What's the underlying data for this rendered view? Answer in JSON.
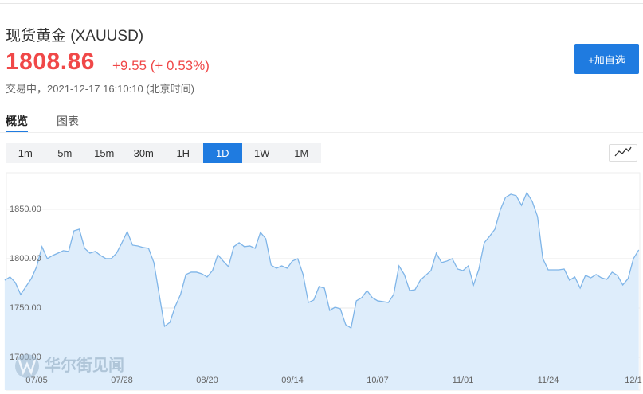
{
  "header": {
    "title": "现货黄金 (XAUUSD)",
    "price": "1808.86",
    "change": "+9.55 (+ 0.53%)",
    "status": "交易中，2021-12-17 16:10:10 (北京时间)",
    "add_button": "+加自选"
  },
  "tabs": [
    "概览",
    "图表"
  ],
  "periods": [
    "1m",
    "5m",
    "15m",
    "30m",
    "1H",
    "1D",
    "1W",
    "1M"
  ],
  "active_period": "1D",
  "watermark": "华尔街见闻",
  "chart_data": {
    "type": "area",
    "color": "#7fb5e8",
    "fill": "#deedfb",
    "grid": true,
    "categories": [
      null,
      null,
      null,
      null,
      null,
      null,
      "07/05",
      null,
      null,
      null,
      null,
      null,
      null,
      null,
      null,
      null,
      null,
      null,
      null,
      null,
      null,
      null,
      "07/28",
      null,
      null,
      null,
      null,
      null,
      null,
      null,
      null,
      null,
      null,
      null,
      null,
      null,
      null,
      null,
      "08/20",
      null,
      null,
      null,
      null,
      null,
      null,
      null,
      null,
      null,
      null,
      null,
      null,
      null,
      null,
      null,
      "09/14",
      null,
      null,
      null,
      null,
      null,
      null,
      null,
      null,
      null,
      null,
      null,
      null,
      null,
      null,
      null,
      "10/07",
      null,
      null,
      null,
      null,
      null,
      null,
      null,
      null,
      null,
      null,
      null,
      null,
      null,
      null,
      null,
      "11/01",
      null,
      null,
      null,
      null,
      null,
      null,
      null,
      null,
      null,
      null,
      null,
      null,
      null,
      null,
      null,
      "11/24",
      null,
      null,
      null,
      null,
      null,
      null,
      null,
      null,
      null,
      null,
      null,
      null,
      null,
      null,
      null,
      "12/1",
      null
    ],
    "values": [
      1778.2,
      1781.5,
      1775.8,
      1763.7,
      1771.8,
      1779.8,
      1791.9,
      1812.1,
      1800,
      1803.2,
      1805.6,
      1808.1,
      1807.3,
      1828.2,
      1829.8,
      1810.5,
      1805.6,
      1807.3,
      1803.2,
      1800,
      1800,
      1805.6,
      1816.1,
      1827.4,
      1813.7,
      1812.9,
      1811.3,
      1810.5,
      1796,
      1763.7,
      1731.5,
      1735.5,
      1751.6,
      1763.7,
      1783.9,
      1786.3,
      1786.3,
      1784.7,
      1781.5,
      1787.9,
      1804,
      1797.6,
      1791.9,
      1812.1,
      1816.1,
      1812.1,
      1812.9,
      1810.5,
      1826.6,
      1820.2,
      1793.5,
      1790.3,
      1792.7,
      1790.3,
      1797.6,
      1800,
      1783.9,
      1755.6,
      1758.1,
      1771.8,
      1770.2,
      1747.6,
      1750.8,
      1749.2,
      1733.1,
      1729.8,
      1757.3,
      1760.5,
      1767.7,
      1760.5,
      1757.3,
      1756.5,
      1755.6,
      1763.7,
      1792.7,
      1783.9,
      1767.7,
      1768.5,
      1778.2,
      1783.1,
      1787.9,
      1805.6,
      1796,
      1797.6,
      1800,
      1789.5,
      1787.9,
      1792.7,
      1773.4,
      1789.5,
      1816.1,
      1822.6,
      1829.8,
      1849.2,
      1862.1,
      1865.3,
      1863.7,
      1854,
      1866.9,
      1858.1,
      1842.7,
      1800,
      1788.7,
      1788.7,
      1788.7,
      1789.5,
      1778.2,
      1781.5,
      1770.2,
      1783.1,
      1780.6,
      1783.9,
      1780.6,
      1779,
      1786.3,
      1783.1,
      1773.4,
      1779.8,
      1800,
      1808.9
    ],
    "ylim": [
      1667,
      1887
    ],
    "yticks": [
      {
        "value": 1700,
        "label": "1700.00"
      },
      {
        "value": 1750,
        "label": "1750.00"
      },
      {
        "value": 1800,
        "label": "1800.00"
      },
      {
        "value": 1850,
        "label": "1850.00"
      }
    ]
  }
}
